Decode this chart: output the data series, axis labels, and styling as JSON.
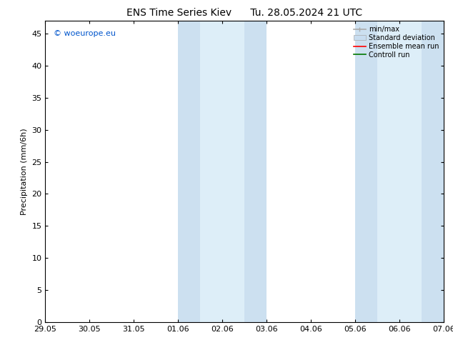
{
  "title_left": "ENS Time Series Kiev",
  "title_right": "Tu. 28.05.2024 21 UTC",
  "ylabel": "Precipitation (mm/6h)",
  "watermark": "© woeurope.eu",
  "watermark_color": "#0055cc",
  "xlim": [
    0.0,
    9.0
  ],
  "ylim": [
    0,
    47
  ],
  "yticks": [
    0,
    5,
    10,
    15,
    20,
    25,
    30,
    35,
    40,
    45
  ],
  "xtick_labels": [
    "29.05",
    "30.05",
    "31.05",
    "01.06",
    "02.06",
    "03.06",
    "04.06",
    "05.06",
    "06.06",
    "07.06"
  ],
  "bg_color": "#ffffff",
  "shade_bands": [
    {
      "x_start": 3.0,
      "x_end": 3.5,
      "color": "#cce0f0"
    },
    {
      "x_start": 3.5,
      "x_end": 4.5,
      "color": "#ddeef8"
    },
    {
      "x_start": 4.5,
      "x_end": 5.0,
      "color": "#cce0f0"
    },
    {
      "x_start": 7.0,
      "x_end": 7.5,
      "color": "#cce0f0"
    },
    {
      "x_start": 7.5,
      "x_end": 8.5,
      "color": "#ddeef8"
    },
    {
      "x_start": 8.5,
      "x_end": 9.0,
      "color": "#cce0f0"
    }
  ],
  "legend_gray": "#aaaaaa",
  "legend_blue": "#c8ddf0",
  "legend_red": "#ff0000",
  "legend_green": "#007700",
  "font_size": 8,
  "title_font_size": 10
}
